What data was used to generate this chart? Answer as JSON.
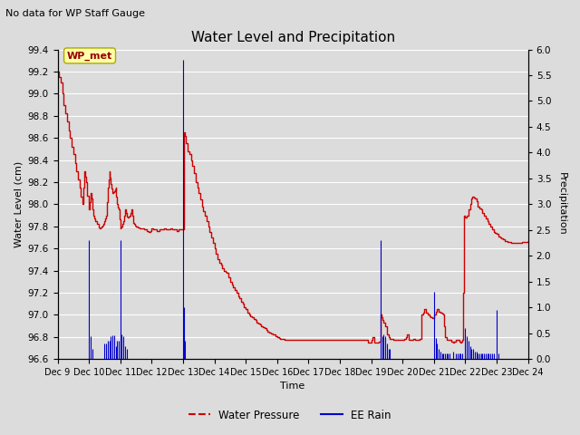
{
  "title": "Water Level and Precipitation",
  "subtitle": "No data for WP Staff Gauge",
  "xlabel": "Time",
  "ylabel_left": "Water Level (cm)",
  "ylabel_right": "Precipitation",
  "ylim_left": [
    96.6,
    99.4
  ],
  "ylim_right": [
    0.0,
    6.0
  ],
  "yticks_left": [
    96.6,
    96.8,
    97.0,
    97.2,
    97.4,
    97.6,
    97.8,
    98.0,
    98.2,
    98.4,
    98.6,
    98.8,
    99.0,
    99.2,
    99.4
  ],
  "yticks_right": [
    0.0,
    0.5,
    1.0,
    1.5,
    2.0,
    2.5,
    3.0,
    3.5,
    4.0,
    4.5,
    5.0,
    5.5,
    6.0
  ],
  "annotation_label": "WP_met",
  "bg_color": "#e8e8e8",
  "plot_bg_color": "#e8e8e8",
  "red_line_color": "#cc0000",
  "blue_bar_color": "#0000cc",
  "legend_labels": [
    "Water Pressure",
    "EE Rain"
  ],
  "water_pressure": [
    [
      9.0,
      99.2
    ],
    [
      9.05,
      99.15
    ],
    [
      9.1,
      99.1
    ],
    [
      9.15,
      99.0
    ],
    [
      9.2,
      98.9
    ],
    [
      9.25,
      98.82
    ],
    [
      9.3,
      98.75
    ],
    [
      9.35,
      98.67
    ],
    [
      9.4,
      98.6
    ],
    [
      9.45,
      98.52
    ],
    [
      9.5,
      98.45
    ],
    [
      9.55,
      98.37
    ],
    [
      9.6,
      98.3
    ],
    [
      9.65,
      98.22
    ],
    [
      9.7,
      98.15
    ],
    [
      9.75,
      98.07
    ],
    [
      9.8,
      98.0
    ],
    [
      9.82,
      98.15
    ],
    [
      9.85,
      98.3
    ],
    [
      9.87,
      98.25
    ],
    [
      9.9,
      98.2
    ],
    [
      9.95,
      98.08
    ],
    [
      10.0,
      97.95
    ],
    [
      10.02,
      98.02
    ],
    [
      10.05,
      98.1
    ],
    [
      10.07,
      98.05
    ],
    [
      10.1,
      98.0
    ],
    [
      10.12,
      97.95
    ],
    [
      10.15,
      97.9
    ],
    [
      10.17,
      97.87
    ],
    [
      10.2,
      97.85
    ],
    [
      10.25,
      97.82
    ],
    [
      10.3,
      97.8
    ],
    [
      10.32,
      97.79
    ],
    [
      10.35,
      97.78
    ],
    [
      10.37,
      97.79
    ],
    [
      10.4,
      97.8
    ],
    [
      10.42,
      97.81
    ],
    [
      10.45,
      97.82
    ],
    [
      10.5,
      97.85
    ],
    [
      10.52,
      97.87
    ],
    [
      10.55,
      97.9
    ],
    [
      10.57,
      98.02
    ],
    [
      10.6,
      98.15
    ],
    [
      10.62,
      98.22
    ],
    [
      10.65,
      98.3
    ],
    [
      10.67,
      98.24
    ],
    [
      10.7,
      98.18
    ],
    [
      10.72,
      98.14
    ],
    [
      10.75,
      98.1
    ],
    [
      10.77,
      98.11
    ],
    [
      10.8,
      98.12
    ],
    [
      10.82,
      98.13
    ],
    [
      10.85,
      98.15
    ],
    [
      10.87,
      98.07
    ],
    [
      10.9,
      98.0
    ],
    [
      10.92,
      97.97
    ],
    [
      10.95,
      97.95
    ],
    [
      10.97,
      97.86
    ],
    [
      11.0,
      97.78
    ],
    [
      11.02,
      97.79
    ],
    [
      11.05,
      97.8
    ],
    [
      11.07,
      97.82
    ],
    [
      11.1,
      97.85
    ],
    [
      11.12,
      97.9
    ],
    [
      11.15,
      97.95
    ],
    [
      11.17,
      97.92
    ],
    [
      11.2,
      97.9
    ],
    [
      11.22,
      97.89
    ],
    [
      11.25,
      97.88
    ],
    [
      11.27,
      97.89
    ],
    [
      11.3,
      97.9
    ],
    [
      11.32,
      97.92
    ],
    [
      11.35,
      97.95
    ],
    [
      11.37,
      97.9
    ],
    [
      11.4,
      97.85
    ],
    [
      11.42,
      97.83
    ],
    [
      11.45,
      97.82
    ],
    [
      11.47,
      97.81
    ],
    [
      11.5,
      97.8
    ],
    [
      11.55,
      97.79
    ],
    [
      11.6,
      97.78
    ],
    [
      11.65,
      97.78
    ],
    [
      11.7,
      97.78
    ],
    [
      11.75,
      97.77
    ],
    [
      11.8,
      97.77
    ],
    [
      11.85,
      97.76
    ],
    [
      11.9,
      97.75
    ],
    [
      11.95,
      97.76
    ],
    [
      12.0,
      97.78
    ],
    [
      12.05,
      97.77
    ],
    [
      12.1,
      97.77
    ],
    [
      12.15,
      97.76
    ],
    [
      12.2,
      97.76
    ],
    [
      12.25,
      97.77
    ],
    [
      12.3,
      97.77
    ],
    [
      12.35,
      97.77
    ],
    [
      12.4,
      97.78
    ],
    [
      12.45,
      97.77
    ],
    [
      12.5,
      97.77
    ],
    [
      12.55,
      97.77
    ],
    [
      12.6,
      97.78
    ],
    [
      12.65,
      97.77
    ],
    [
      12.7,
      97.77
    ],
    [
      12.75,
      97.77
    ],
    [
      12.8,
      97.76
    ],
    [
      12.85,
      97.77
    ],
    [
      12.9,
      97.77
    ],
    [
      12.95,
      97.77
    ],
    [
      13.0,
      97.77
    ],
    [
      13.02,
      97.77
    ],
    [
      13.03,
      98.65
    ],
    [
      13.07,
      98.62
    ],
    [
      13.1,
      98.55
    ],
    [
      13.15,
      98.48
    ],
    [
      13.2,
      98.45
    ],
    [
      13.25,
      98.4
    ],
    [
      13.3,
      98.35
    ],
    [
      13.35,
      98.28
    ],
    [
      13.4,
      98.2
    ],
    [
      13.45,
      98.15
    ],
    [
      13.5,
      98.1
    ],
    [
      13.55,
      98.04
    ],
    [
      13.6,
      97.98
    ],
    [
      13.65,
      97.94
    ],
    [
      13.7,
      97.9
    ],
    [
      13.75,
      97.85
    ],
    [
      13.8,
      97.8
    ],
    [
      13.85,
      97.75
    ],
    [
      13.9,
      97.7
    ],
    [
      13.95,
      97.65
    ],
    [
      14.0,
      97.6
    ],
    [
      14.05,
      97.55
    ],
    [
      14.1,
      97.5
    ],
    [
      14.15,
      97.47
    ],
    [
      14.2,
      97.45
    ],
    [
      14.25,
      97.42
    ],
    [
      14.3,
      97.4
    ],
    [
      14.35,
      97.39
    ],
    [
      14.4,
      97.38
    ],
    [
      14.45,
      97.34
    ],
    [
      14.5,
      97.3
    ],
    [
      14.55,
      97.27
    ],
    [
      14.6,
      97.25
    ],
    [
      14.65,
      97.22
    ],
    [
      14.7,
      97.2
    ],
    [
      14.75,
      97.17
    ],
    [
      14.8,
      97.15
    ],
    [
      14.85,
      97.12
    ],
    [
      14.9,
      97.1
    ],
    [
      14.95,
      97.07
    ],
    [
      15.0,
      97.05
    ],
    [
      15.05,
      97.02
    ],
    [
      15.1,
      97.0
    ],
    [
      15.15,
      96.99
    ],
    [
      15.2,
      96.98
    ],
    [
      15.25,
      96.96
    ],
    [
      15.3,
      96.95
    ],
    [
      15.35,
      96.93
    ],
    [
      15.4,
      96.92
    ],
    [
      15.45,
      96.91
    ],
    [
      15.5,
      96.9
    ],
    [
      15.55,
      96.89
    ],
    [
      15.6,
      96.88
    ],
    [
      15.65,
      96.86
    ],
    [
      15.7,
      96.85
    ],
    [
      15.75,
      96.84
    ],
    [
      15.8,
      96.83
    ],
    [
      15.85,
      96.82
    ],
    [
      15.9,
      96.82
    ],
    [
      15.95,
      96.81
    ],
    [
      16.0,
      96.8
    ],
    [
      16.05,
      96.79
    ],
    [
      16.1,
      96.78
    ],
    [
      16.15,
      96.78
    ],
    [
      16.2,
      96.78
    ],
    [
      16.25,
      96.77
    ],
    [
      16.3,
      96.77
    ],
    [
      16.4,
      96.77
    ],
    [
      16.5,
      96.77
    ],
    [
      16.6,
      96.77
    ],
    [
      16.7,
      96.77
    ],
    [
      16.8,
      96.77
    ],
    [
      16.9,
      96.77
    ],
    [
      17.0,
      96.77
    ],
    [
      17.1,
      96.77
    ],
    [
      17.2,
      96.77
    ],
    [
      17.3,
      96.77
    ],
    [
      17.4,
      96.77
    ],
    [
      17.5,
      96.77
    ],
    [
      17.6,
      96.77
    ],
    [
      17.7,
      96.77
    ],
    [
      17.8,
      96.77
    ],
    [
      17.9,
      96.77
    ],
    [
      18.0,
      96.77
    ],
    [
      18.1,
      96.77
    ],
    [
      18.2,
      96.77
    ],
    [
      18.3,
      96.77
    ],
    [
      18.4,
      96.77
    ],
    [
      18.5,
      96.77
    ],
    [
      18.6,
      96.77
    ],
    [
      18.7,
      96.77
    ],
    [
      18.8,
      96.77
    ],
    [
      18.9,
      96.75
    ],
    [
      19.0,
      96.77
    ],
    [
      19.05,
      96.8
    ],
    [
      19.1,
      96.75
    ],
    [
      19.12,
      96.75
    ],
    [
      19.15,
      96.75
    ],
    [
      19.2,
      96.75
    ],
    [
      19.25,
      96.76
    ],
    [
      19.3,
      97.0
    ],
    [
      19.32,
      96.98
    ],
    [
      19.35,
      96.95
    ],
    [
      19.4,
      96.93
    ],
    [
      19.45,
      96.9
    ],
    [
      19.5,
      96.82
    ],
    [
      19.55,
      96.8
    ],
    [
      19.6,
      96.78
    ],
    [
      19.7,
      96.77
    ],
    [
      19.8,
      96.77
    ],
    [
      19.9,
      96.77
    ],
    [
      20.0,
      96.77
    ],
    [
      20.05,
      96.78
    ],
    [
      20.1,
      96.8
    ],
    [
      20.15,
      96.82
    ],
    [
      20.2,
      96.77
    ],
    [
      20.3,
      96.77
    ],
    [
      20.35,
      96.78
    ],
    [
      20.4,
      96.77
    ],
    [
      20.5,
      96.77
    ],
    [
      20.55,
      96.78
    ],
    [
      20.6,
      97.0
    ],
    [
      20.65,
      97.02
    ],
    [
      20.7,
      97.05
    ],
    [
      20.75,
      97.02
    ],
    [
      20.8,
      97.0
    ],
    [
      20.85,
      96.99
    ],
    [
      20.9,
      96.98
    ],
    [
      20.95,
      96.97
    ],
    [
      21.0,
      97.0
    ],
    [
      21.05,
      97.03
    ],
    [
      21.1,
      97.05
    ],
    [
      21.15,
      97.03
    ],
    [
      21.2,
      97.02
    ],
    [
      21.25,
      97.01
    ],
    [
      21.3,
      97.0
    ],
    [
      21.32,
      96.9
    ],
    [
      21.35,
      96.8
    ],
    [
      21.4,
      96.77
    ],
    [
      21.45,
      96.77
    ],
    [
      21.5,
      96.77
    ],
    [
      21.55,
      96.76
    ],
    [
      21.6,
      96.75
    ],
    [
      21.65,
      96.76
    ],
    [
      21.7,
      96.77
    ],
    [
      21.75,
      96.77
    ],
    [
      21.8,
      96.77
    ],
    [
      21.82,
      96.76
    ],
    [
      21.85,
      96.75
    ],
    [
      21.87,
      96.76
    ],
    [
      21.9,
      96.77
    ],
    [
      21.92,
      97.2
    ],
    [
      21.95,
      97.9
    ],
    [
      22.0,
      97.88
    ],
    [
      22.05,
      97.9
    ],
    [
      22.1,
      97.95
    ],
    [
      22.15,
      98.0
    ],
    [
      22.2,
      98.05
    ],
    [
      22.22,
      98.07
    ],
    [
      22.25,
      98.07
    ],
    [
      22.27,
      98.06
    ],
    [
      22.3,
      98.05
    ],
    [
      22.35,
      98.03
    ],
    [
      22.4,
      97.98
    ],
    [
      22.45,
      97.96
    ],
    [
      22.5,
      97.95
    ],
    [
      22.55,
      97.92
    ],
    [
      22.6,
      97.9
    ],
    [
      22.65,
      97.87
    ],
    [
      22.7,
      97.85
    ],
    [
      22.75,
      97.82
    ],
    [
      22.8,
      97.8
    ],
    [
      22.85,
      97.77
    ],
    [
      22.9,
      97.75
    ],
    [
      22.95,
      97.74
    ],
    [
      23.0,
      97.73
    ],
    [
      23.05,
      97.71
    ],
    [
      23.1,
      97.7
    ],
    [
      23.15,
      97.69
    ],
    [
      23.2,
      97.68
    ],
    [
      23.25,
      97.67
    ],
    [
      23.3,
      97.67
    ],
    [
      23.35,
      97.66
    ],
    [
      23.4,
      97.66
    ],
    [
      23.45,
      97.65
    ],
    [
      23.5,
      97.65
    ],
    [
      23.6,
      97.65
    ],
    [
      23.7,
      97.65
    ],
    [
      23.8,
      97.66
    ],
    [
      23.9,
      97.66
    ],
    [
      24.0,
      97.67
    ]
  ],
  "rain": [
    [
      10.0,
      2.3
    ],
    [
      10.05,
      0.45
    ],
    [
      10.1,
      0.2
    ],
    [
      10.5,
      0.3
    ],
    [
      10.55,
      0.3
    ],
    [
      10.6,
      0.35
    ],
    [
      10.65,
      0.35
    ],
    [
      10.7,
      0.45
    ],
    [
      10.75,
      0.46
    ],
    [
      10.8,
      0.46
    ],
    [
      10.85,
      0.24
    ],
    [
      10.9,
      0.35
    ],
    [
      10.95,
      0.35
    ],
    [
      11.0,
      2.3
    ],
    [
      11.05,
      0.47
    ],
    [
      11.1,
      0.45
    ],
    [
      11.15,
      0.24
    ],
    [
      11.2,
      0.2
    ],
    [
      13.0,
      5.8
    ],
    [
      13.02,
      1.0
    ],
    [
      13.05,
      0.35
    ],
    [
      19.3,
      2.3
    ],
    [
      19.35,
      0.45
    ],
    [
      19.4,
      0.47
    ],
    [
      19.45,
      0.45
    ],
    [
      19.5,
      0.3
    ],
    [
      19.55,
      0.2
    ],
    [
      19.6,
      0.2
    ],
    [
      21.0,
      1.3
    ],
    [
      21.05,
      0.4
    ],
    [
      21.1,
      0.3
    ],
    [
      21.15,
      0.2
    ],
    [
      21.2,
      0.15
    ],
    [
      21.25,
      0.1
    ],
    [
      21.3,
      0.1
    ],
    [
      21.35,
      0.1
    ],
    [
      21.4,
      0.1
    ],
    [
      21.45,
      0.1
    ],
    [
      21.5,
      0.1
    ],
    [
      21.6,
      0.15
    ],
    [
      21.7,
      0.1
    ],
    [
      21.75,
      0.1
    ],
    [
      21.8,
      0.1
    ],
    [
      21.85,
      0.1
    ],
    [
      21.9,
      0.1
    ],
    [
      22.0,
      0.6
    ],
    [
      22.05,
      0.45
    ],
    [
      22.1,
      0.35
    ],
    [
      22.15,
      0.25
    ],
    [
      22.2,
      0.2
    ],
    [
      22.25,
      0.2
    ],
    [
      22.3,
      0.15
    ],
    [
      22.35,
      0.15
    ],
    [
      22.4,
      0.1
    ],
    [
      22.45,
      0.1
    ],
    [
      22.5,
      0.1
    ],
    [
      22.55,
      0.1
    ],
    [
      22.6,
      0.1
    ],
    [
      22.65,
      0.1
    ],
    [
      22.7,
      0.1
    ],
    [
      22.75,
      0.1
    ],
    [
      22.8,
      0.1
    ],
    [
      22.85,
      0.1
    ],
    [
      22.9,
      0.1
    ],
    [
      23.0,
      0.95
    ],
    [
      23.05,
      0.1
    ]
  ],
  "xlim": [
    9.0,
    24.0
  ],
  "xtick_positions": [
    9,
    10,
    11,
    12,
    13,
    14,
    15,
    16,
    17,
    18,
    19,
    20,
    21,
    22,
    23,
    24
  ],
  "xtick_labels": [
    "Dec 9",
    "Dec 10",
    "Dec 11",
    "Dec 12",
    "Dec 13",
    "Dec 14",
    "Dec 15",
    "Dec 16",
    "Dec 17",
    "Dec 18",
    "Dec 19",
    "Dec 20",
    "Dec 21",
    "Dec 22",
    "Dec 23",
    "Dec 24"
  ]
}
